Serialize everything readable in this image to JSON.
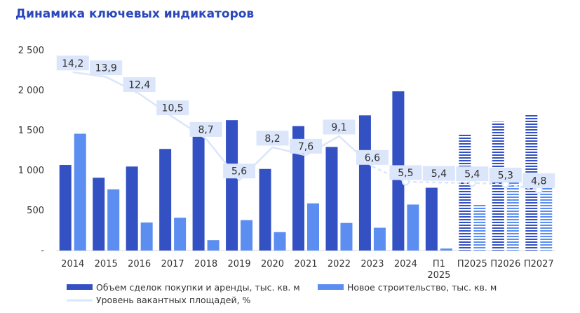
{
  "chart_data": {
    "type": "bar",
    "title": "Динамика ключевых индикаторов",
    "categories": [
      [
        "2014"
      ],
      [
        "2015"
      ],
      [
        "2016"
      ],
      [
        "2017"
      ],
      [
        "2018"
      ],
      [
        "2019"
      ],
      [
        "2020"
      ],
      [
        "2021"
      ],
      [
        "2022"
      ],
      [
        "2023"
      ],
      [
        "2024"
      ],
      [
        "П1",
        "2025"
      ],
      [
        "П2025"
      ],
      [
        "П2026"
      ],
      [
        "П2027"
      ]
    ],
    "ylim": [
      0,
      2500
    ],
    "yticks": [
      {
        "value": 0,
        "label": "-"
      },
      {
        "value": 500,
        "label": "500"
      },
      {
        "value": 1000,
        "label": "1 000"
      },
      {
        "value": 1500,
        "label": "1 500"
      },
      {
        "value": 2000,
        "label": "2 000"
      },
      {
        "value": 2500,
        "label": "2 500"
      }
    ],
    "grid": false,
    "legend_position": "bottom",
    "forecast_from_index": 12,
    "series": [
      {
        "name": "Объем сделок покупки и аренды, тыс. кв. м",
        "type": "bar",
        "color": "#3451c4",
        "values": [
          1070,
          910,
          1050,
          1270,
          1450,
          1630,
          1020,
          1555,
          1295,
          1690,
          1990,
          785,
          1450,
          1610,
          1710
        ]
      },
      {
        "name": "Новое строительство, тыс. кв. м",
        "type": "bar",
        "color": "#5b8ef0",
        "values": [
          1460,
          765,
          350,
          410,
          130,
          380,
          230,
          590,
          345,
          285,
          575,
          25,
          570,
          900,
          820
        ]
      },
      {
        "name": "Уровень вакантных площадей, %",
        "type": "line",
        "color": "#dbe6fb",
        "values": [
          14.2,
          13.9,
          12.4,
          10.5,
          8.7,
          5.6,
          8.2,
          7.6,
          9.1,
          6.6,
          5.5,
          5.4,
          5.4,
          5.3,
          4.8
        ],
        "labels": [
          "14,2",
          "13,9",
          "12,4",
          "10,5",
          "8,7",
          "5,6",
          "8,2",
          "7,6",
          "9,1",
          "6,6",
          "5,5",
          "5,4",
          "5,4",
          "5,3",
          "4,8"
        ],
        "line_in_bar_units": [
          2230,
          2170,
          1960,
          1670,
          1400,
          880,
          1290,
          1190,
          1430,
          1050,
          860,
          850,
          845,
          830,
          760
        ]
      }
    ]
  }
}
